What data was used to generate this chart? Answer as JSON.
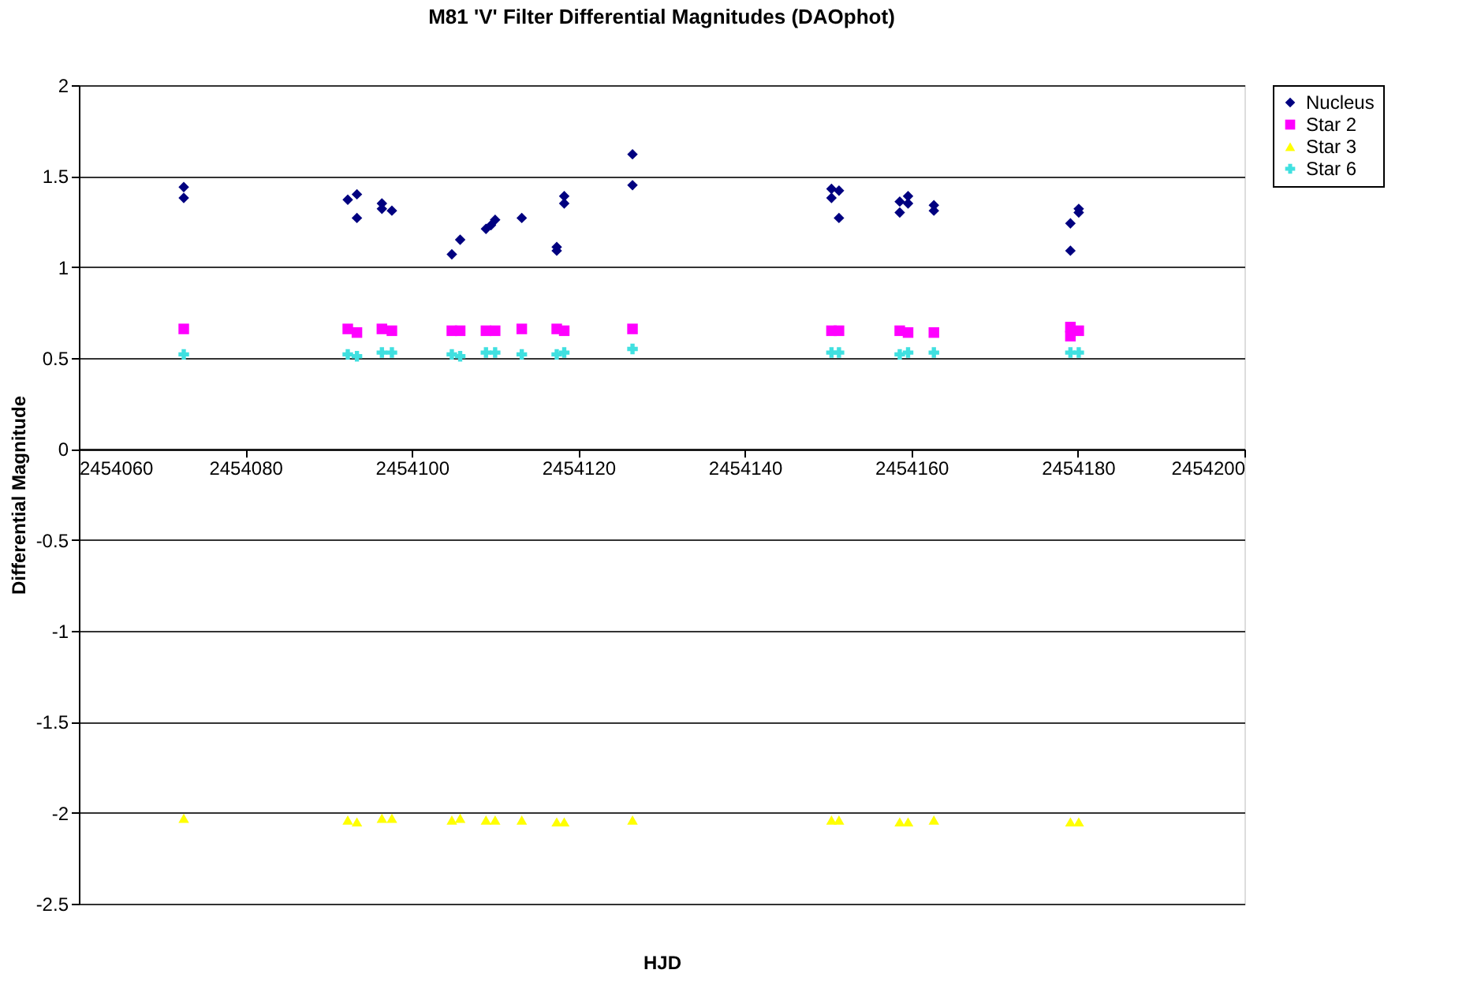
{
  "chart_data": {
    "type": "scatter",
    "title": "M81 'V' Filter Differential Magnitudes (DAOphot)",
    "xlabel": "HJD",
    "ylabel": "Differential Magnitude",
    "xlim": [
      2454060,
      2454200
    ],
    "xticks": [
      2454060,
      2454080,
      2454100,
      2454120,
      2454140,
      2454160,
      2454180,
      2454200
    ],
    "ylim": [
      -2.5,
      2
    ],
    "yticks": [
      -2.5,
      -2,
      -1.5,
      -1,
      -0.5,
      0,
      0.5,
      1,
      1.5,
      2
    ],
    "grid": "y",
    "legend": "right",
    "series": [
      {
        "name": "Nucleus",
        "color": "#000080",
        "marker": "diamond",
        "x": [
          2454072.6,
          2454072.6,
          2454092.3,
          2454093.4,
          2454093.4,
          2454096.4,
          2454096.4,
          2454097.6,
          2454104.8,
          2454105.8,
          2454108.9,
          2454109.5,
          2454110.0,
          2454113.2,
          2454117.4,
          2454117.4,
          2454118.3,
          2454118.3,
          2454126.5,
          2454126.5,
          2454150.4,
          2454151.3,
          2454150.4,
          2454151.3,
          2454158.6,
          2454159.6,
          2454159.6,
          2454158.6,
          2454162.7,
          2454162.7,
          2454179.1,
          2454180.1,
          2454180.1,
          2454179.1
        ],
        "values": [
          1.44,
          1.38,
          1.37,
          1.4,
          1.27,
          1.35,
          1.32,
          1.31,
          1.07,
          1.15,
          1.21,
          1.23,
          1.26,
          1.27,
          1.11,
          1.09,
          1.39,
          1.35,
          1.62,
          1.45,
          1.43,
          1.42,
          1.38,
          1.27,
          1.36,
          1.39,
          1.35,
          1.3,
          1.34,
          1.31,
          1.24,
          1.3,
          1.32,
          1.09
        ]
      },
      {
        "name": "Star 2",
        "color": "#ff00ff",
        "marker": "square",
        "x": [
          2454072.6,
          2454092.3,
          2454093.4,
          2454096.4,
          2454097.6,
          2454104.8,
          2454105.8,
          2454108.9,
          2454110.0,
          2454113.2,
          2454117.4,
          2454118.3,
          2454126.5,
          2454150.4,
          2454151.3,
          2454158.6,
          2454159.6,
          2454162.7,
          2454179.1,
          2454179.1,
          2454180.1
        ],
        "values": [
          0.66,
          0.66,
          0.64,
          0.66,
          0.65,
          0.65,
          0.65,
          0.65,
          0.65,
          0.66,
          0.66,
          0.65,
          0.66,
          0.65,
          0.65,
          0.65,
          0.64,
          0.64,
          0.67,
          0.62,
          0.65
        ]
      },
      {
        "name": "Star 3",
        "color": "#ffff00",
        "marker": "triangle",
        "x": [
          2454072.6,
          2454092.3,
          2454093.4,
          2454096.4,
          2454097.6,
          2454104.8,
          2454105.8,
          2454108.9,
          2454110.0,
          2454113.2,
          2454117.4,
          2454118.3,
          2454126.5,
          2454150.4,
          2454151.3,
          2454158.6,
          2454159.6,
          2454162.7,
          2454179.1,
          2454180.1
        ],
        "values": [
          -2.03,
          -2.04,
          -2.05,
          -2.03,
          -2.03,
          -2.04,
          -2.03,
          -2.04,
          -2.04,
          -2.04,
          -2.05,
          -2.05,
          -2.04,
          -2.04,
          -2.04,
          -2.05,
          -2.05,
          -2.04,
          -2.05,
          -2.05
        ]
      },
      {
        "name": "Star 6",
        "color": "#40e0e0",
        "marker": "cross",
        "x": [
          2454072.6,
          2454092.3,
          2454093.4,
          2454096.4,
          2454097.6,
          2454104.8,
          2454105.8,
          2454108.9,
          2454110.0,
          2454113.2,
          2454117.4,
          2454118.3,
          2454126.5,
          2454150.4,
          2454151.3,
          2454158.6,
          2454159.6,
          2454162.7,
          2454179.1,
          2454180.1
        ],
        "values": [
          0.52,
          0.52,
          0.51,
          0.53,
          0.53,
          0.52,
          0.51,
          0.53,
          0.53,
          0.52,
          0.52,
          0.53,
          0.55,
          0.53,
          0.53,
          0.52,
          0.53,
          0.53,
          0.53,
          0.53
        ]
      }
    ]
  }
}
